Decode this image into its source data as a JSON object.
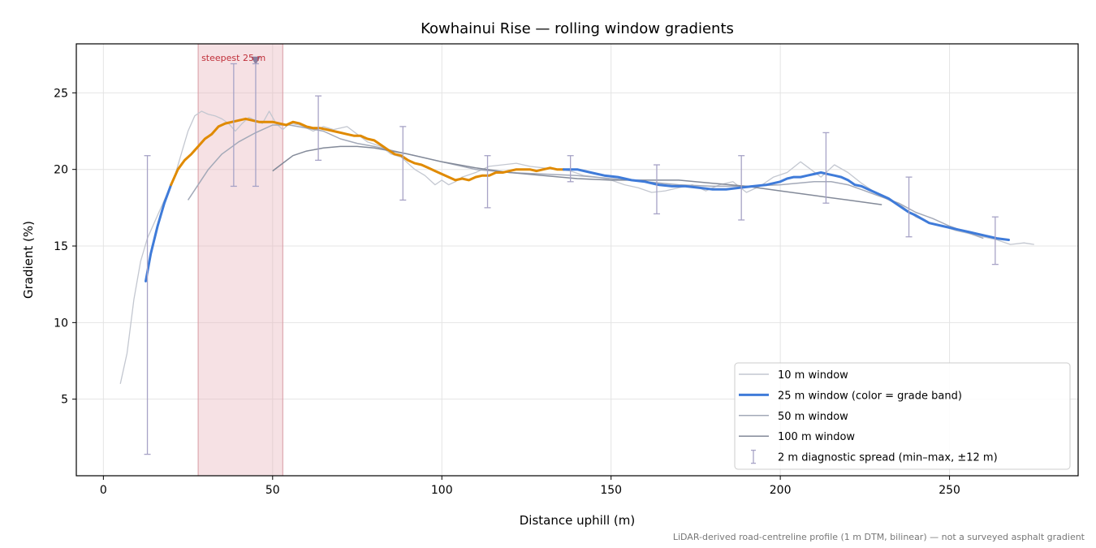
{
  "chart_data": {
    "type": "line",
    "title": "Kowhainui Rise — rolling window gradients",
    "xlabel": "Distance uphill (m)",
    "ylabel": "Gradient (%)",
    "xlim": [
      -8,
      288
    ],
    "ylim": [
      0,
      28.2
    ],
    "xticks": [
      0,
      50,
      100,
      150,
      200,
      250
    ],
    "yticks": [
      5,
      10,
      15,
      20,
      25
    ],
    "grid": true,
    "legend_position": "lower-right",
    "footnote": "LiDAR-derived road-centreline profile (1 m DTM, bilinear) — not a surveyed asphalt gradient",
    "highlight": {
      "label": "steepest 25 m",
      "x_start": 28,
      "x_end": 53,
      "marker_x": 45,
      "marker_y": 27.1
    },
    "colors": {
      "w10": "#c3c7d0",
      "w25_band_low": "#3f7bd9",
      "w25_band_high": "#e08a00",
      "w50": "#a3a9b8",
      "w100": "#838a99",
      "errorbar": "#a7a3c6",
      "highlight": "#e8b4bb",
      "highlight_text": "#c0303a"
    },
    "series": [
      {
        "name": "10 m window",
        "x": [
          5,
          7,
          9,
          11,
          13,
          15,
          17,
          19,
          21,
          23,
          25,
          27,
          29,
          31,
          33,
          35,
          37,
          39,
          41,
          43,
          45,
          47,
          49,
          51,
          53,
          55,
          58,
          62,
          65,
          68,
          72,
          75,
          78,
          82,
          85,
          88,
          92,
          95,
          98,
          100,
          102,
          104,
          106,
          110,
          114,
          118,
          122,
          126,
          130,
          134,
          138,
          142,
          146,
          150,
          154,
          158,
          162,
          166,
          170,
          174,
          178,
          182,
          186,
          190,
          194,
          198,
          202,
          206,
          209,
          212,
          216,
          220,
          224,
          228,
          232,
          236,
          240,
          244,
          248,
          252,
          256,
          260,
          264,
          268,
          272,
          275
        ],
        "y": [
          6.0,
          8.0,
          11.5,
          14.0,
          15.5,
          16.5,
          17.5,
          18.5,
          19.5,
          21.0,
          22.5,
          23.5,
          23.8,
          23.6,
          23.5,
          23.3,
          23.0,
          22.5,
          23.0,
          23.4,
          23.2,
          23.0,
          23.8,
          23.0,
          22.6,
          23.0,
          22.9,
          22.5,
          22.8,
          22.6,
          22.8,
          22.3,
          21.8,
          21.5,
          21.0,
          20.8,
          20.0,
          19.6,
          19.0,
          19.3,
          19.0,
          19.2,
          19.5,
          19.8,
          20.2,
          20.3,
          20.4,
          20.2,
          20.1,
          20.0,
          19.9,
          19.6,
          19.5,
          19.3,
          19.0,
          18.8,
          18.5,
          18.6,
          18.8,
          19.0,
          18.6,
          19.0,
          19.2,
          18.5,
          18.9,
          19.5,
          19.8,
          20.5,
          20.0,
          19.5,
          20.3,
          19.8,
          19.1,
          18.5,
          18.0,
          17.6,
          16.9,
          16.5,
          16.3,
          16.0,
          15.8,
          15.6,
          15.4,
          15.1,
          15.2,
          15.1
        ]
      },
      {
        "name": "25 m window (color = grade band)",
        "x": [
          12.5,
          14,
          16,
          18,
          20,
          22,
          24,
          26,
          28,
          30,
          32,
          34,
          36,
          38,
          40,
          42,
          44,
          46,
          48,
          50,
          52,
          54,
          56,
          58,
          60,
          62,
          64,
          66,
          68,
          70,
          72,
          74,
          76,
          78,
          80,
          82,
          84,
          86,
          88,
          90,
          92,
          94,
          96,
          98,
          100,
          102,
          104,
          106,
          108,
          110,
          112,
          114,
          116,
          118,
          120,
          122,
          124,
          126,
          128,
          130,
          132,
          134,
          136,
          140,
          144,
          148,
          152,
          156,
          160,
          164,
          168,
          172,
          176,
          180,
          184,
          188,
          192,
          196,
          200,
          202,
          204,
          206,
          208,
          210,
          212,
          214,
          216,
          218,
          220,
          222,
          224,
          226,
          228,
          230,
          232,
          234,
          236,
          238,
          240,
          244,
          248,
          252,
          256,
          260,
          264,
          267.5
        ],
        "y": [
          12.7,
          14.5,
          16.3,
          17.8,
          19.0,
          20.0,
          20.6,
          21.0,
          21.5,
          22.0,
          22.3,
          22.8,
          23.0,
          23.1,
          23.2,
          23.3,
          23.2,
          23.1,
          23.1,
          23.1,
          23.0,
          22.9,
          23.1,
          23.0,
          22.8,
          22.7,
          22.7,
          22.6,
          22.5,
          22.4,
          22.3,
          22.2,
          22.2,
          22.0,
          21.9,
          21.6,
          21.3,
          21.0,
          20.9,
          20.6,
          20.4,
          20.3,
          20.1,
          19.9,
          19.7,
          19.5,
          19.3,
          19.4,
          19.3,
          19.5,
          19.6,
          19.6,
          19.8,
          19.8,
          19.9,
          20.0,
          20.0,
          20.0,
          19.9,
          20.0,
          20.1,
          20.0,
          20.0,
          20.0,
          19.8,
          19.6,
          19.5,
          19.3,
          19.2,
          19.0,
          18.9,
          18.9,
          18.8,
          18.7,
          18.7,
          18.8,
          18.9,
          19.0,
          19.2,
          19.4,
          19.5,
          19.5,
          19.6,
          19.7,
          19.8,
          19.7,
          19.6,
          19.5,
          19.3,
          19.0,
          18.9,
          18.7,
          18.5,
          18.3,
          18.1,
          17.8,
          17.5,
          17.2,
          17.0,
          16.5,
          16.3,
          16.1,
          15.9,
          15.7,
          15.5,
          15.4
        ]
      },
      {
        "name": "50 m window",
        "x": [
          25,
          28,
          31,
          35,
          40,
          45,
          50,
          55,
          60,
          65,
          70,
          75,
          80,
          90,
          100,
          110,
          120,
          130,
          140,
          150,
          160,
          170,
          180,
          190,
          200,
          210,
          215,
          220,
          225,
          230,
          235,
          240,
          245,
          250,
          255,
          260
        ],
        "y": [
          18.0,
          19.0,
          20.0,
          21.0,
          21.8,
          22.4,
          22.9,
          22.9,
          22.7,
          22.5,
          22.0,
          21.7,
          21.5,
          21.0,
          20.5,
          20.0,
          19.8,
          19.7,
          19.6,
          19.4,
          19.2,
          19.0,
          18.9,
          18.9,
          19.0,
          19.2,
          19.2,
          19.0,
          18.6,
          18.2,
          17.8,
          17.2,
          16.8,
          16.3,
          15.9,
          15.5
        ]
      },
      {
        "name": "100 m window",
        "x": [
          50,
          53,
          56,
          60,
          65,
          70,
          75,
          80,
          90,
          100,
          110,
          120,
          130,
          140,
          150,
          160,
          170,
          180,
          190,
          200,
          210,
          220,
          230
        ],
        "y": [
          19.9,
          20.4,
          20.9,
          21.2,
          21.4,
          21.5,
          21.5,
          21.4,
          21.0,
          20.5,
          20.1,
          19.8,
          19.6,
          19.4,
          19.3,
          19.3,
          19.3,
          19.1,
          18.9,
          18.6,
          18.3,
          18.0,
          17.7
        ]
      },
      {
        "name": "2 m diagnostic spread (min–max, ±12 m)",
        "type": "errorbar",
        "x": [
          13,
          38.5,
          45,
          63.5,
          88.5,
          113.5,
          138,
          163.5,
          188.5,
          213.5,
          238,
          263.5
        ],
        "y_low": [
          1.4,
          18.9,
          18.9,
          20.6,
          18.0,
          17.5,
          19.2,
          17.1,
          16.7,
          17.8,
          15.6,
          13.8
        ],
        "y_high": [
          20.9,
          26.9,
          26.9,
          24.8,
          22.8,
          20.9,
          20.9,
          20.3,
          20.9,
          22.4,
          19.5,
          16.9
        ]
      }
    ],
    "band_high_x_range": [
      21,
      136
    ]
  }
}
